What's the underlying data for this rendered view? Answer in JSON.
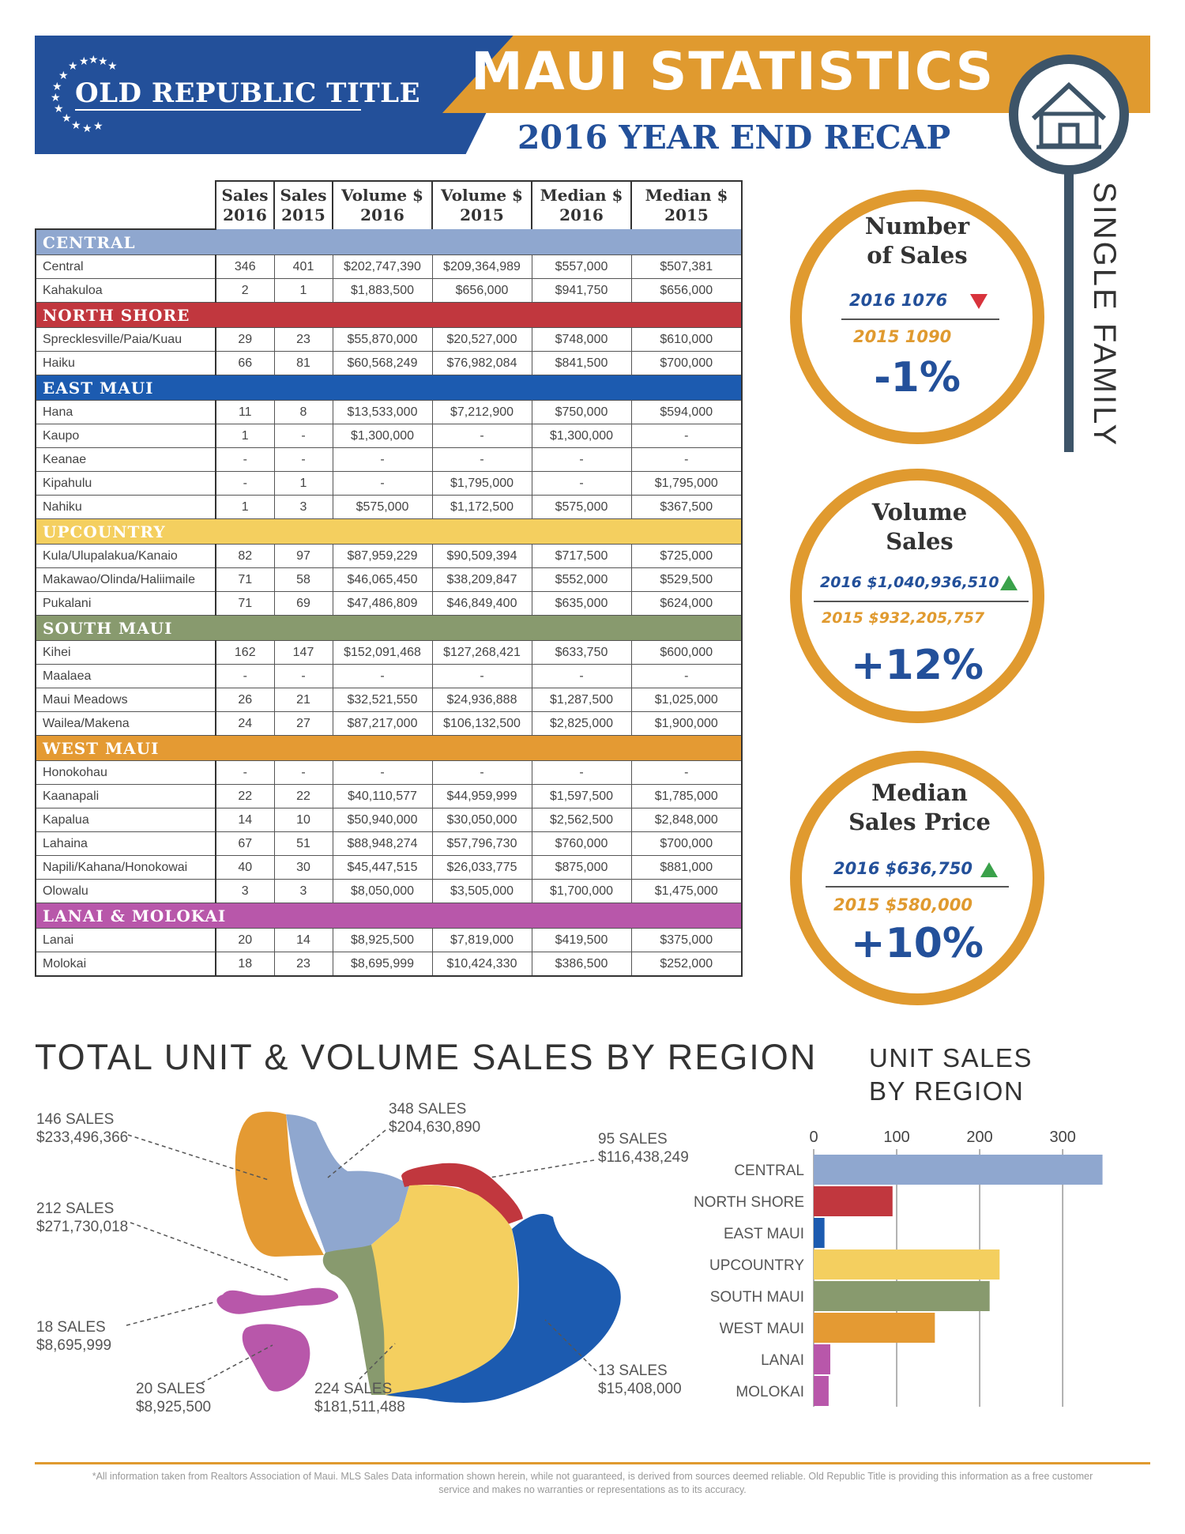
{
  "header": {
    "brand": "OLD REPUBLIC TITLE",
    "title": "MAUI STATISTICS",
    "subtitle": "2016 YEAR END RECAP",
    "side_label": "SINGLE FAMILY",
    "colors": {
      "blue": "#23509a",
      "orange": "#e09a2f"
    },
    "icon": "house-icon"
  },
  "table": {
    "columns": [
      "Sales 2016",
      "Sales 2015",
      "Volume $ 2016",
      "Volume $ 2015",
      "Median $ 2016",
      "Median $ 2015"
    ],
    "regions": [
      {
        "name": "CENTRAL",
        "color": "#8fa7cf",
        "rows": [
          [
            "Central",
            "346",
            "401",
            "$202,747,390",
            "$209,364,989",
            "$557,000",
            "$507,381"
          ],
          [
            "Kahakuloa",
            "2",
            "1",
            "$1,883,500",
            "$656,000",
            "$941,750",
            "$656,000"
          ]
        ]
      },
      {
        "name": "NORTH SHORE",
        "color": "#c1373e",
        "rows": [
          [
            "Sprecklesville/Paia/Kuau",
            "29",
            "23",
            "$55,870,000",
            "$20,527,000",
            "$748,000",
            "$610,000"
          ],
          [
            "Haiku",
            "66",
            "81",
            "$60,568,249",
            "$76,982,084",
            "$841,500",
            "$700,000"
          ]
        ]
      },
      {
        "name": "EAST MAUI",
        "color": "#1c5bb0",
        "rows": [
          [
            "Hana",
            "11",
            "8",
            "$13,533,000",
            "$7,212,900",
            "$750,000",
            "$594,000"
          ],
          [
            "Kaupo",
            "1",
            "-",
            "$1,300,000",
            "-",
            "$1,300,000",
            "-"
          ],
          [
            "Keanae",
            "-",
            "-",
            "-",
            "-",
            "-",
            "-"
          ],
          [
            "Kipahulu",
            "-",
            "1",
            "-",
            "$1,795,000",
            "-",
            "$1,795,000"
          ],
          [
            "Nahiku",
            "1",
            "3",
            "$575,000",
            "$1,172,500",
            "$575,000",
            "$367,500"
          ]
        ]
      },
      {
        "name": "UPCOUNTRY",
        "color": "#f4cf5f",
        "rows": [
          [
            "Kula/Ulupalakua/Kanaio",
            "82",
            "97",
            "$87,959,229",
            "$90,509,394",
            "$717,500",
            "$725,000"
          ],
          [
            "Makawao/Olinda/Haliimaile",
            "71",
            "58",
            "$46,065,450",
            "$38,209,847",
            "$552,000",
            "$529,500"
          ],
          [
            "Pukalani",
            "71",
            "69",
            "$47,486,809",
            "$46,849,400",
            "$635,000",
            "$624,000"
          ]
        ]
      },
      {
        "name": "SOUTH MAUI",
        "color": "#889a6e",
        "rows": [
          [
            "Kihei",
            "162",
            "147",
            "$152,091,468",
            "$127,268,421",
            "$633,750",
            "$600,000"
          ],
          [
            "Maalaea",
            "-",
            "-",
            "-",
            "-",
            "-",
            "-"
          ],
          [
            "Maui Meadows",
            "26",
            "21",
            "$32,521,550",
            "$24,936,888",
            "$1,287,500",
            "$1,025,000"
          ],
          [
            "Wailea/Makena",
            "24",
            "27",
            "$87,217,000",
            "$106,132,500",
            "$2,825,000",
            "$1,900,000"
          ]
        ]
      },
      {
        "name": "WEST MAUI",
        "color": "#e49a33",
        "rows": [
          [
            "Honokohau",
            "-",
            "-",
            "-",
            "-",
            "-",
            "-"
          ],
          [
            "Kaanapali",
            "22",
            "22",
            "$40,110,577",
            "$44,959,999",
            "$1,597,500",
            "$1,785,000"
          ],
          [
            "Kapalua",
            "14",
            "10",
            "$50,940,000",
            "$30,050,000",
            "$2,562,500",
            "$2,848,000"
          ],
          [
            "Lahaina",
            "67",
            "51",
            "$88,948,274",
            "$57,796,730",
            "$760,000",
            "$700,000"
          ],
          [
            "Napili/Kahana/Honokowai",
            "40",
            "30",
            "$45,447,515",
            "$26,033,775",
            "$875,000",
            "$881,000"
          ],
          [
            "Olowalu",
            "3",
            "3",
            "$8,050,000",
            "$3,505,000",
            "$1,700,000",
            "$1,475,000"
          ]
        ]
      },
      {
        "name": "LANAI & MOLOKAI",
        "color": "#b857aa",
        "rows": [
          [
            "Lanai",
            "20",
            "14",
            "$8,925,500",
            "$7,819,000",
            "$419,500",
            "$375,000"
          ],
          [
            "Molokai",
            "18",
            "23",
            "$8,695,999",
            "$10,424,330",
            "$386,500",
            "$252,000"
          ]
        ]
      }
    ]
  },
  "stats": [
    {
      "title": "Number of Sales",
      "title_l1": "Number",
      "title_l2": "of Sales",
      "line2016": "2016   1076",
      "line2015": "2015   1090",
      "trend": "down",
      "pct": "-1%"
    },
    {
      "title": "Volume Sales",
      "title_l1": "Volume",
      "title_l2": "Sales",
      "line2016": "2016  $1,040,936,510",
      "line2015": "2015  $932,205,757",
      "trend": "up",
      "pct": "+12%"
    },
    {
      "title": "Median Sales Price",
      "title_l1": "Median",
      "title_l2": "Sales Price",
      "line2016": "2016   $636,750",
      "line2015": "2015   $580,000",
      "trend": "up",
      "pct": "+10%"
    }
  ],
  "map": {
    "title": "TOTAL UNIT & VOLUME SALES BY REGION",
    "labels": [
      {
        "sales": "146 SALES",
        "volume": "$233,496,366"
      },
      {
        "sales": "348 SALES",
        "volume": "$204,630,890"
      },
      {
        "sales": "95 SALES",
        "volume": "$116,438,249"
      },
      {
        "sales": "212 SALES",
        "volume": "$271,730,018"
      },
      {
        "sales": "18 SALES",
        "volume": "$8,695,999"
      },
      {
        "sales": "20 SALES",
        "volume": "$8,925,500"
      },
      {
        "sales": "224 SALES",
        "volume": "$181,511,488"
      },
      {
        "sales": "13 SALES",
        "volume": "$15,408,000"
      }
    ]
  },
  "chart_data": {
    "type": "bar",
    "orientation": "horizontal",
    "title": "UNIT SALES BY REGION",
    "title_l1": "UNIT SALES",
    "title_l2": "BY REGION",
    "categories": [
      "CENTRAL",
      "NORTH SHORE",
      "EAST MAUI",
      "UPCOUNTRY",
      "SOUTH MAUI",
      "WEST MAUI",
      "LANAI",
      "MOLOKAI"
    ],
    "values": [
      348,
      95,
      13,
      224,
      212,
      146,
      20,
      18
    ],
    "colors": [
      "#8fa7cf",
      "#c1373e",
      "#1c5bb0",
      "#f4cf5f",
      "#889a6e",
      "#e49a33",
      "#b857aa",
      "#b857aa"
    ],
    "xticks": [
      0,
      100,
      200,
      300
    ],
    "xlim": [
      0,
      350
    ],
    "grid": true
  },
  "footer": {
    "line1": "*All information taken from Realtors Association of Maui.  MLS Sales Data information shown herein, while not guaranteed,  is derived from sources deemed reliable.  Old Republic Title is providing this information as a free customer",
    "line2": "service and makes no warranties or representations as to its accuracy."
  }
}
